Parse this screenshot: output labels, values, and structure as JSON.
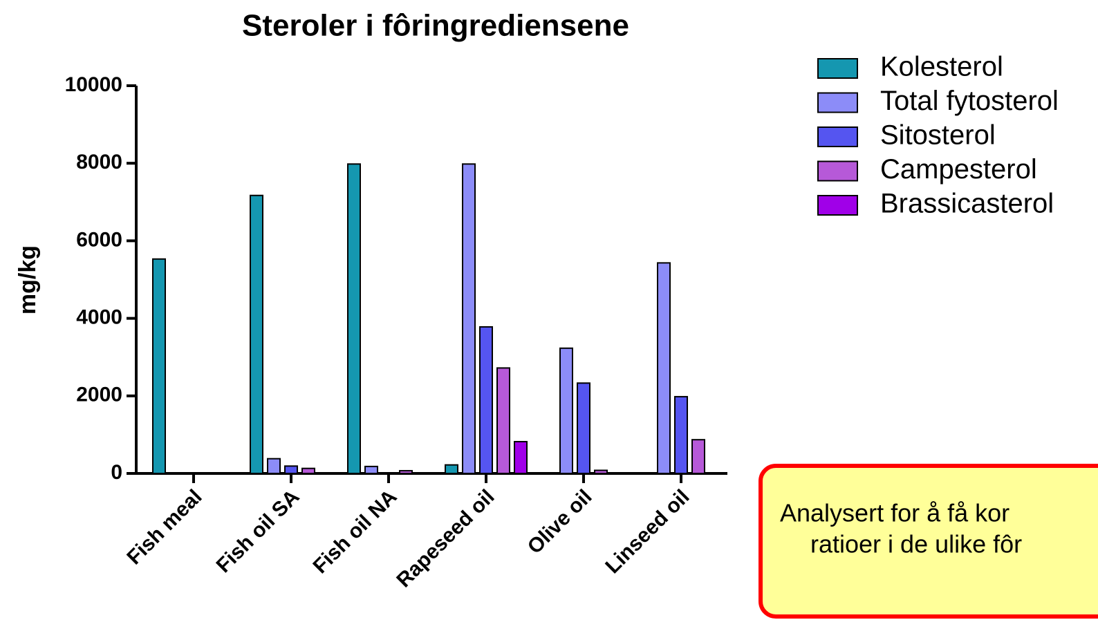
{
  "chart_data": {
    "type": "bar",
    "title": "Steroler i fôringrediensene",
    "ylabel": "mg/kg",
    "categories": [
      "Fish meal",
      "Fish oil SA",
      "Fish oil NA",
      "Rapeseed oil",
      "Olive oil",
      "Linseed oil"
    ],
    "series": [
      {
        "name": "Kolesterol",
        "color": "#1597b0",
        "values": [
          5530,
          7170,
          7980,
          220,
          0,
          0
        ]
      },
      {
        "name": "Total fytosterol",
        "color": "#8c8cf8",
        "values": [
          0,
          380,
          180,
          7980,
          3230,
          5430
        ]
      },
      {
        "name": "Sitosterol",
        "color": "#5555f0",
        "values": [
          0,
          190,
          0,
          3780,
          2330,
          1980
        ]
      },
      {
        "name": "Campesterol",
        "color": "#b659d8",
        "values": [
          0,
          130,
          70,
          2720,
          80,
          870
        ]
      },
      {
        "name": "Brassicasterol",
        "color": "#a000e8",
        "values": [
          0,
          0,
          0,
          820,
          0,
          0
        ]
      }
    ],
    "ylim": [
      0,
      10000
    ],
    "yticks": [
      0,
      2000,
      4000,
      6000,
      8000,
      10000
    ],
    "legend": "right",
    "annotation": [
      "Analysert for å få kor",
      "ratioer i de ulike fôr"
    ]
  }
}
